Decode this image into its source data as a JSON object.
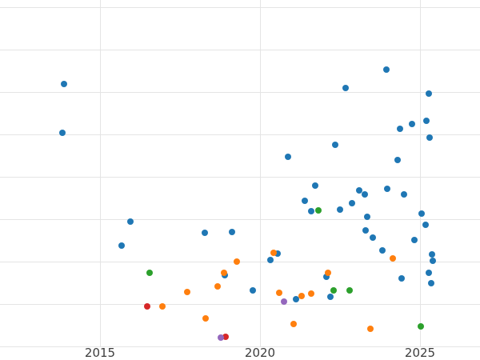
{
  "chart_data": {
    "type": "scatter",
    "title": "",
    "xlabel": "",
    "ylabel": "",
    "legend": false,
    "grid": true,
    "background": "#ffffff",
    "x_ticks": [
      {
        "value": 2015,
        "label": "2015"
      },
      {
        "value": 2020,
        "label": "2020"
      },
      {
        "value": 2025,
        "label": "2025"
      }
    ],
    "y_ticks_visible": false,
    "point_format": "[x_year, y_px_from_top] (y-axis has no visible tick labels)",
    "series": [
      {
        "name": "series-blue",
        "color": "#1f77b4",
        "points": [
          [
            2013.88,
            105
          ],
          [
            2013.83,
            166
          ],
          [
            2015.68,
            307
          ],
          [
            2015.95,
            277
          ],
          [
            2018.28,
            291
          ],
          [
            2019.13,
            290
          ],
          [
            2018.9,
            344
          ],
          [
            2019.78,
            363
          ],
          [
            2020.33,
            325
          ],
          [
            2020.55,
            317
          ],
          [
            2020.88,
            196
          ],
          [
            2021.13,
            374
          ],
          [
            2021.4,
            251
          ],
          [
            2021.6,
            264
          ],
          [
            2021.73,
            232
          ],
          [
            2022.08,
            346
          ],
          [
            2022.2,
            371
          ],
          [
            2022.35,
            181
          ],
          [
            2022.5,
            262
          ],
          [
            2022.68,
            110
          ],
          [
            2022.88,
            254
          ],
          [
            2023.1,
            238
          ],
          [
            2023.28,
            243
          ],
          [
            2023.35,
            271
          ],
          [
            2023.3,
            288
          ],
          [
            2023.53,
            297
          ],
          [
            2023.83,
            313
          ],
          [
            2023.95,
            87
          ],
          [
            2023.98,
            236
          ],
          [
            2024.3,
            200
          ],
          [
            2024.38,
            161
          ],
          [
            2024.5,
            243
          ],
          [
            2024.43,
            348
          ],
          [
            2024.75,
            155
          ],
          [
            2024.83,
            300
          ],
          [
            2025.05,
            267
          ],
          [
            2025.18,
            281
          ],
          [
            2025.28,
            117
          ],
          [
            2025.2,
            151
          ],
          [
            2025.3,
            172
          ],
          [
            2025.38,
            318
          ],
          [
            2025.4,
            326
          ],
          [
            2025.28,
            341
          ],
          [
            2025.35,
            354
          ]
        ]
      },
      {
        "name": "series-orange",
        "color": "#ff7f0e",
        "points": [
          [
            2016.95,
            383
          ],
          [
            2017.73,
            365
          ],
          [
            2018.3,
            398
          ],
          [
            2018.68,
            358
          ],
          [
            2018.88,
            341
          ],
          [
            2019.28,
            327
          ],
          [
            2020.43,
            316
          ],
          [
            2020.6,
            366
          ],
          [
            2021.05,
            405
          ],
          [
            2021.3,
            370
          ],
          [
            2021.6,
            367
          ],
          [
            2022.13,
            341
          ],
          [
            2023.45,
            411
          ],
          [
            2024.15,
            323
          ]
        ]
      },
      {
        "name": "series-green",
        "color": "#2ca02c",
        "points": [
          [
            2016.55,
            341
          ],
          [
            2021.83,
            263
          ],
          [
            2022.3,
            363
          ],
          [
            2022.8,
            363
          ],
          [
            2025.03,
            408
          ]
        ]
      },
      {
        "name": "series-red",
        "color": "#d62728",
        "points": [
          [
            2016.48,
            383
          ],
          [
            2018.93,
            421
          ]
        ]
      },
      {
        "name": "series-purple",
        "color": "#9467bd",
        "points": [
          [
            2018.78,
            422
          ],
          [
            2020.75,
            377
          ]
        ]
      }
    ]
  }
}
